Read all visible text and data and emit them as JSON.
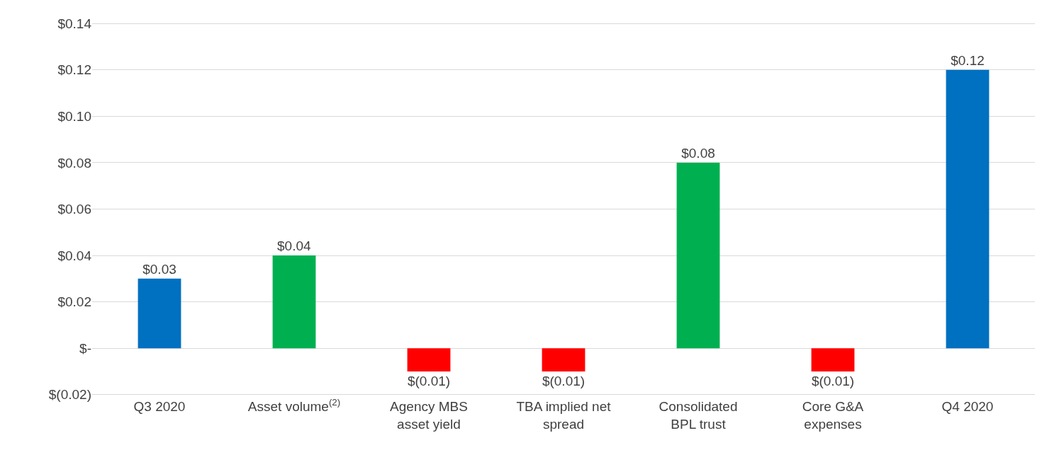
{
  "chart_data": {
    "type": "bar",
    "categories": [
      "Q3 2020",
      "Asset volume$^{(2)}$",
      "Agency MBS\nasset yield",
      "TBA implied net\nspread",
      "Consolidated\nBPL trust",
      "Core G&A\nexpenses",
      "Q4 2020"
    ],
    "values": [
      0.03,
      0.04,
      -0.01,
      -0.01,
      0.08,
      -0.01,
      0.12
    ],
    "colors": [
      "#0070c0",
      "#00b050",
      "#ff0000",
      "#ff0000",
      "#00b050",
      "#ff0000",
      "#0070c0"
    ],
    "value_labels": [
      "$0.03",
      "$0.04",
      "$(0.01)",
      "$(0.01)",
      "$0.08",
      "$(0.01)",
      "$0.12"
    ],
    "ylim": [
      -0.021,
      0.141
    ],
    "yticks": [
      {
        "value": -0.02,
        "label": "$(0.02)"
      },
      {
        "value": 0,
        "label": "$-"
      },
      {
        "value": 0.02,
        "label": "$0.02"
      },
      {
        "value": 0.04,
        "label": "$0.04"
      },
      {
        "value": 0.06,
        "label": "$0.06"
      },
      {
        "value": 0.08,
        "label": "$0.08"
      },
      {
        "value": 0.1,
        "label": "$0.10"
      },
      {
        "value": 0.12,
        "label": "$0.12"
      },
      {
        "value": 0.14,
        "label": "$0.14"
      }
    ],
    "grid": "y"
  }
}
